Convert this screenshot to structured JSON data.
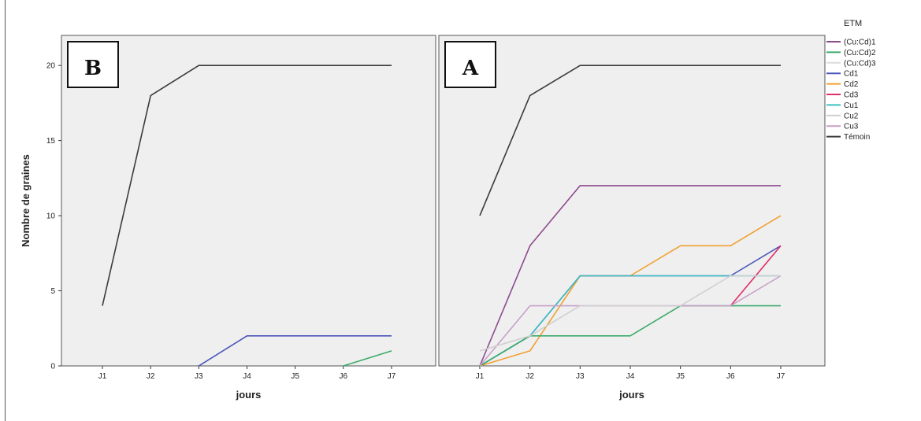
{
  "chart_data": [
    {
      "type": "line",
      "panel_label": "B",
      "xlabel": "jours",
      "ylabel": "Nombre de graines",
      "x": [
        "J1",
        "J2",
        "J3",
        "J4",
        "J5",
        "J6",
        "J7"
      ],
      "ylim": [
        0,
        22
      ],
      "yticks": [
        0,
        5,
        10,
        15,
        20
      ],
      "series": [
        {
          "name": "Témoin",
          "color": "#3b3b3b",
          "values": [
            4,
            18,
            20,
            20,
            20,
            20,
            20
          ]
        },
        {
          "name": "Cd1",
          "color": "#4a56b8",
          "values": [
            null,
            null,
            0,
            2,
            2,
            2,
            2
          ]
        },
        {
          "name": "(Cu:Cd)2",
          "color": "#3daa6a",
          "values": [
            null,
            null,
            null,
            null,
            null,
            0,
            1
          ]
        }
      ]
    },
    {
      "type": "line",
      "panel_label": "A",
      "xlabel": "jours",
      "ylabel": "",
      "x": [
        "J1",
        "J2",
        "J3",
        "J4",
        "J5",
        "J6",
        "J7"
      ],
      "ylim": [
        0,
        22
      ],
      "yticks": [
        0,
        5,
        10,
        15,
        20
      ],
      "series": [
        {
          "name": "Témoin",
          "color": "#3b3b3b",
          "values": [
            10,
            18,
            20,
            20,
            20,
            20,
            20
          ]
        },
        {
          "name": "(Cu:Cd)1",
          "color": "#8e4a8e",
          "values": [
            0,
            8,
            12,
            12,
            12,
            12,
            12
          ]
        },
        {
          "name": "Cd2",
          "color": "#f0a030",
          "values": [
            0,
            1,
            6,
            6,
            8,
            8,
            10
          ]
        },
        {
          "name": "Cd1",
          "color": "#4a56b8",
          "values": [
            0,
            2,
            6,
            6,
            6,
            6,
            8
          ]
        },
        {
          "name": "Cd3",
          "color": "#e0306a",
          "values": [
            null,
            null,
            null,
            null,
            null,
            4,
            8
          ]
        },
        {
          "name": "Cu1",
          "color": "#3cc0c0",
          "values": [
            0,
            2,
            6,
            6,
            6,
            6,
            6
          ]
        },
        {
          "name": "(Cu:Cd)2",
          "color": "#3daa6a",
          "values": [
            0,
            2,
            2,
            2,
            4,
            4,
            4
          ]
        },
        {
          "name": "Cu3",
          "color": "#c8a0c8",
          "values": [
            0,
            4,
            4,
            4,
            4,
            4,
            6
          ]
        },
        {
          "name": "Cu2",
          "color": "#d0d0d0",
          "values": [
            1,
            2,
            4,
            4,
            4,
            6,
            6
          ]
        }
      ]
    }
  ],
  "legend": {
    "title": "ETM",
    "placement": "right",
    "entries": [
      {
        "name": "(Cu:Cd)1",
        "color": "#8e4a8e"
      },
      {
        "name": "(Cu:Cd)2",
        "color": "#3daa6a"
      },
      {
        "name": "(Cu:Cd)3",
        "color": "#dcdcdc"
      },
      {
        "name": "Cd1",
        "color": "#4a56b8"
      },
      {
        "name": "Cd2",
        "color": "#f0a030"
      },
      {
        "name": "Cd3",
        "color": "#e0306a"
      },
      {
        "name": "Cu1",
        "color": "#3cc0c0"
      },
      {
        "name": "Cu2",
        "color": "#d0d0d0"
      },
      {
        "name": "Cu3",
        "color": "#c8a0c8"
      },
      {
        "name": "Témoin",
        "color": "#3b3b3b"
      }
    ]
  }
}
